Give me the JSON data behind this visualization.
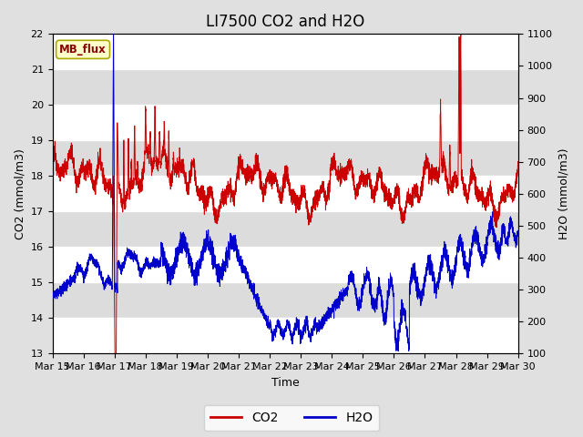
{
  "title": "LI7500 CO2 and H2O",
  "xlabel": "Time",
  "ylabel_left": "CO2 (mmol/m3)",
  "ylabel_right": "H2O (mmol/m3)",
  "ylim_left": [
    13.0,
    22.0
  ],
  "ylim_right": [
    100,
    1100
  ],
  "yticks_left": [
    13.0,
    14.0,
    15.0,
    16.0,
    17.0,
    18.0,
    19.0,
    20.0,
    21.0,
    22.0
  ],
  "yticks_right": [
    100,
    200,
    300,
    400,
    500,
    600,
    700,
    800,
    900,
    1000,
    1100
  ],
  "xtick_labels": [
    "Mar 15",
    "Mar 16",
    "Mar 17",
    "Mar 18",
    "Mar 19",
    "Mar 20",
    "Mar 21",
    "Mar 22",
    "Mar 23",
    "Mar 24",
    "Mar 25",
    "Mar 26",
    "Mar 27",
    "Mar 28",
    "Mar 29",
    "Mar 30"
  ],
  "co2_color": "#CC0000",
  "h2o_color": "#0000CC",
  "bg_outer": "#E0E0E0",
  "annotation_text": "MB_flux",
  "annotation_bg": "#FFFFCC",
  "annotation_border": "#AAAA00",
  "legend_co2": "CO2",
  "legend_h2o": "H2O",
  "title_fontsize": 12,
  "axis_fontsize": 9,
  "tick_fontsize": 8
}
